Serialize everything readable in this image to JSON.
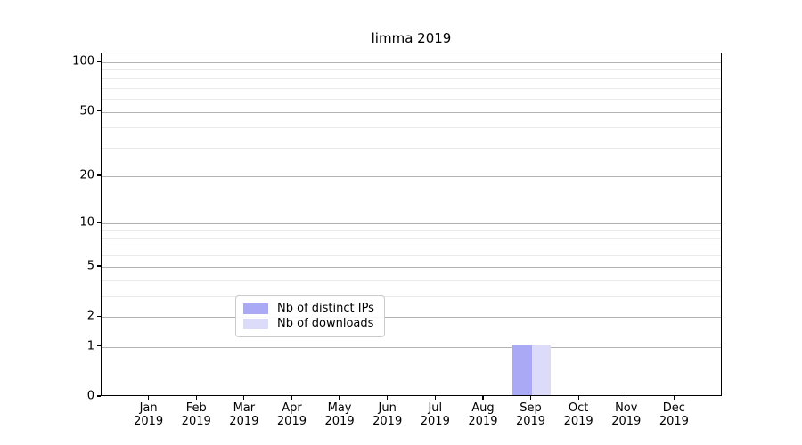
{
  "figure": {
    "title": "limma 2019"
  },
  "chart_data": {
    "type": "bar",
    "title": "limma 2019",
    "categories": [
      "Jan 2019",
      "Feb 2019",
      "Mar 2019",
      "Apr 2019",
      "May 2019",
      "Jun 2019",
      "Jul 2019",
      "Aug 2019",
      "Sep 2019",
      "Oct 2019",
      "Nov 2019",
      "Dec 2019"
    ],
    "series": [
      {
        "name": "Nb of distinct IPs",
        "color": "#a9a9f5",
        "values": [
          0,
          0,
          0,
          0,
          0,
          0,
          0,
          0,
          1,
          0,
          0,
          0
        ]
      },
      {
        "name": "Nb of downloads",
        "color": "#dcdcfa",
        "values": [
          0,
          0,
          0,
          0,
          0,
          0,
          0,
          0,
          1,
          0,
          0,
          0
        ]
      }
    ],
    "xlabel": "",
    "ylabel": "",
    "yscale": "log1p",
    "ylim": [
      0,
      113
    ],
    "y_major_ticks": [
      0,
      1,
      2,
      5,
      10,
      20,
      50,
      100
    ],
    "y_minor_gridlines": [
      3,
      4,
      6,
      7,
      8,
      9,
      30,
      40,
      60,
      70,
      80,
      90
    ],
    "grid": true,
    "legend_position": "lower center",
    "bar_width_fraction": 0.4
  },
  "colors": {
    "major_grid": "#b3b3b3",
    "minor_grid": "#eaeaea",
    "axis": "#000000",
    "legend_border": "#cbcbcb"
  }
}
